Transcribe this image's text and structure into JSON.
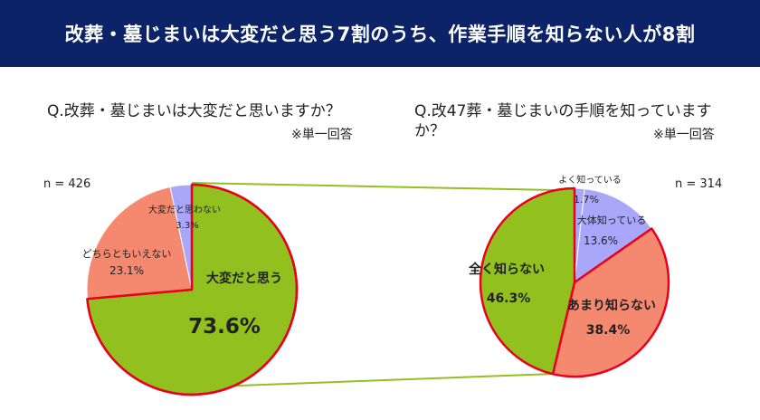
{
  "header": {
    "title": "改葬・墓じまいは大変だと思う7割のうち、作業手順を知らない人が8割"
  },
  "left": {
    "question": "Q.改葬・墓じまいは大変だと思いますか？",
    "note": "※単一回答",
    "n_label": "n = 426"
  },
  "right": {
    "question_line1": "Q.改47葬・墓じまいの手順を知っています",
    "question_line2": "か？",
    "note": "※単一回答",
    "n_label": "n = 314"
  },
  "colors": {
    "green": "#92c01f",
    "salmon": "#f4896f",
    "lavender": "#a8a7fa",
    "red_outline": "#e8001c",
    "connector": "#92c01f",
    "header_bg": "#0c2467"
  },
  "chart_data": [
    {
      "type": "pie",
      "n": 426,
      "slices": [
        {
          "label": "大変だと思う",
          "value": 73.6,
          "display": "73.6%"
        },
        {
          "label": "どちらともいえない",
          "value": 23.1,
          "display": "23.1%"
        },
        {
          "label": "大変だと思わない",
          "value": 3.3,
          "display": "3.3%"
        }
      ]
    },
    {
      "type": "pie",
      "n": 314,
      "slices": [
        {
          "label": "よく知っている",
          "value": 1.7,
          "display": "1.7%"
        },
        {
          "label": "大体知っている",
          "value": 13.6,
          "display": "13.6%"
        },
        {
          "label": "あまり知らない",
          "value": 38.4,
          "display": "38.4%"
        },
        {
          "label": "全く知らない",
          "value": 46.3,
          "display": "46.3%"
        }
      ]
    }
  ]
}
